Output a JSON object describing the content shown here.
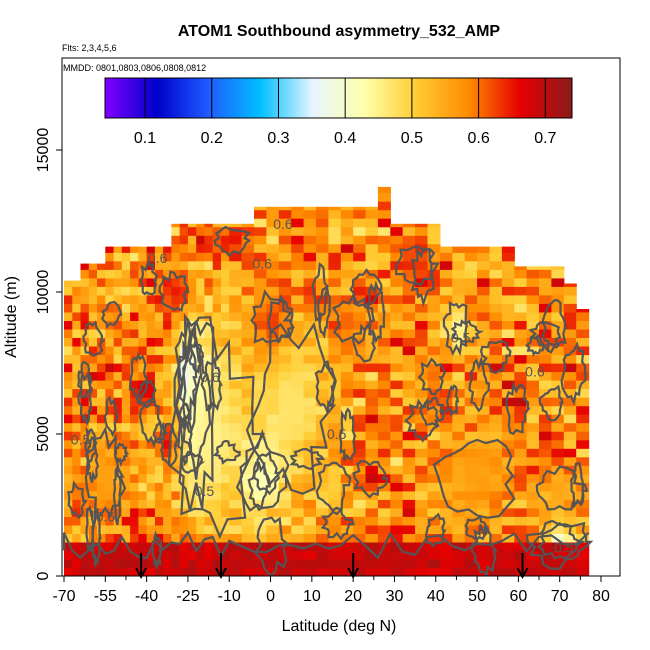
{
  "chart_data": {
    "type": "heatmap",
    "title": "ATOM1 Southbound asymmetry_532_AMP",
    "subtitle_flights": "Flts: 2,3,4,5,6",
    "subtitle_dates": "MMDD: 0801,0803,0806,0808,0812",
    "xlabel": "Latitude (deg N)",
    "ylabel": "Altitude (m)",
    "xlim": [
      -70,
      80
    ],
    "ylim": [
      0,
      17500
    ],
    "x_tick_labels": [
      "-70",
      "-55",
      "-40",
      "-25",
      "-10",
      "0",
      "10",
      "20",
      "30",
      "40",
      "50",
      "60",
      "70",
      "80"
    ],
    "x_tick_values": [
      -70,
      -55,
      -40,
      -25,
      -10,
      0,
      10,
      20,
      30,
      40,
      50,
      60,
      70,
      80
    ],
    "y_tick_values": [
      0,
      5000,
      10000,
      15000
    ],
    "y_tick_labels": [
      "0",
      "5000",
      "10000",
      "15000"
    ],
    "colorbar": {
      "range": [
        0.04,
        0.74
      ],
      "tick_values": [
        0.1,
        0.2,
        0.3,
        0.4,
        0.5,
        0.6,
        0.7
      ],
      "tick_labels": [
        "0.1",
        "0.2",
        "0.3",
        "0.4",
        "0.5",
        "0.6",
        "0.7"
      ],
      "colors": [
        "#7f00ff",
        "#0000cc",
        "#1e5cff",
        "#00bfff",
        "#e6f5ff",
        "#ffffaa",
        "#ffcc33",
        "#ff8c00",
        "#e60000",
        "#8b1a1a"
      ]
    },
    "contour_labels": [
      {
        "text": "0.6",
        "x": 3,
        "y": 12400
      },
      {
        "text": "0.6",
        "x": -2,
        "y": 11000
      },
      {
        "text": "0.6",
        "x": -36,
        "y": 11200
      },
      {
        "text": "0.5",
        "x": 46,
        "y": 8400
      },
      {
        "text": "0.6",
        "x": 64,
        "y": 7200
      },
      {
        "text": "0.6",
        "x": -17,
        "y": 7000
      },
      {
        "text": "0.5",
        "x": -64,
        "y": 4800
      },
      {
        "text": "0.5",
        "x": 16,
        "y": 5000
      },
      {
        "text": "0.5",
        "x": -19,
        "y": 3000
      },
      {
        "text": "0.6",
        "x": -55,
        "y": 2100
      },
      {
        "text": "0.5",
        "x": 71,
        "y": 1000
      }
    ],
    "flight_markers_lat": [
      -42,
      -13,
      20,
      61
    ],
    "profile_top": [
      {
        "lat": -70,
        "alt": 10400
      },
      {
        "lat": -63,
        "alt": 10400
      },
      {
        "lat": -63,
        "alt": 11000
      },
      {
        "lat": -55,
        "alt": 11000
      },
      {
        "lat": -55,
        "alt": 11600
      },
      {
        "lat": -30,
        "alt": 11600
      },
      {
        "lat": -30,
        "alt": 12400
      },
      {
        "lat": -3,
        "alt": 12400
      },
      {
        "lat": -3,
        "alt": 13000
      },
      {
        "lat": 25,
        "alt": 13000
      },
      {
        "lat": 25,
        "alt": 13700
      },
      {
        "lat": 28,
        "alt": 13700
      },
      {
        "lat": 28,
        "alt": 12400
      },
      {
        "lat": 42,
        "alt": 12400
      },
      {
        "lat": 42,
        "alt": 11600
      },
      {
        "lat": 60,
        "alt": 11600
      },
      {
        "lat": 60,
        "alt": 10900
      },
      {
        "lat": 71,
        "alt": 10900
      },
      {
        "lat": 71,
        "alt": 10300
      },
      {
        "lat": 75,
        "alt": 10300
      },
      {
        "lat": 75,
        "alt": 9400
      },
      {
        "lat": 78,
        "alt": 9400
      },
      {
        "lat": 78,
        "alt": 0
      }
    ],
    "blobs": [
      {
        "lat": -25,
        "alt": 7000,
        "rx": 3,
        "ry": 1300,
        "v": 0.18
      },
      {
        "lat": -22,
        "alt": 6000,
        "rx": 5,
        "ry": 2400,
        "v": 0.33
      },
      {
        "lat": -17,
        "alt": 5000,
        "rx": 14,
        "ry": 3800,
        "v": 0.45
      },
      {
        "lat": 5,
        "alt": 6000,
        "rx": 10,
        "ry": 3000,
        "v": 0.47
      },
      {
        "lat": -2,
        "alt": 3500,
        "rx": 6,
        "ry": 1400,
        "v": 0.42
      },
      {
        "lat": -32,
        "alt": 4600,
        "rx": 3,
        "ry": 700,
        "v": 0.66
      },
      {
        "lat": -40,
        "alt": 6400,
        "rx": 3,
        "ry": 500,
        "v": 0.7
      },
      {
        "lat": 0,
        "alt": 9000,
        "rx": 5,
        "ry": 1000,
        "v": 0.63
      },
      {
        "lat": 20,
        "alt": 9000,
        "rx": 5,
        "ry": 800,
        "v": 0.6
      },
      {
        "lat": 45,
        "alt": 8800,
        "rx": 3,
        "ry": 900,
        "v": 0.44
      },
      {
        "lat": 39,
        "alt": 7000,
        "rx": 3,
        "ry": 600,
        "v": 0.6
      },
      {
        "lat": 70,
        "alt": 1200,
        "rx": 5,
        "ry": 600,
        "v": 0.35
      },
      {
        "lat": 70,
        "alt": 3000,
        "rx": 6,
        "ry": 800,
        "v": 0.55
      },
      {
        "lat": 50,
        "alt": 3500,
        "rx": 10,
        "ry": 1500,
        "v": 0.56
      },
      {
        "lat": -55,
        "alt": 3500,
        "rx": 7,
        "ry": 1500,
        "v": 0.56
      },
      {
        "lat": 15,
        "alt": 3200,
        "rx": 4,
        "ry": 900,
        "v": 0.5
      },
      {
        "lat": -10,
        "alt": 11800,
        "rx": 5,
        "ry": 500,
        "v": 0.66
      },
      {
        "lat": -30,
        "alt": 10000,
        "rx": 5,
        "ry": 700,
        "v": 0.65
      },
      {
        "lat": 35,
        "alt": 11000,
        "rx": 5,
        "ry": 700,
        "v": 0.64
      },
      {
        "lat": 10,
        "alt": 400,
        "rx": 80,
        "ry": 700,
        "v": 0.7
      }
    ]
  }
}
